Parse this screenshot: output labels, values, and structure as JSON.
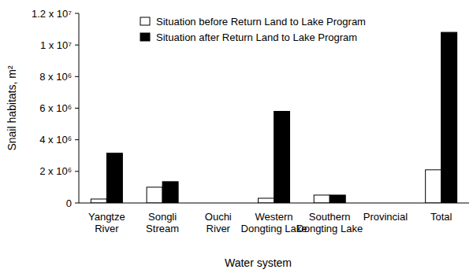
{
  "chart_data": {
    "type": "bar",
    "x_label": "Water system",
    "y_label": "Snail habitats, m²",
    "categories": [
      "Yangtze River",
      "Songli Stream",
      "Ouchi River",
      "Western Dongting Lake",
      "Southern Dongting Lake",
      "Provincial",
      "Total"
    ],
    "series": [
      {
        "name": "Situation before Return Land to Lake Program",
        "color": "#ffffff",
        "values": [
          250000,
          1000000,
          0,
          300000,
          500000,
          0,
          2100000
        ]
      },
      {
        "name": "Situation after Return Land to Lake Program",
        "color": "#000000",
        "values": [
          3150000,
          1350000,
          0,
          5800000,
          500000,
          0,
          10800000
        ]
      }
    ],
    "ylim": [
      0,
      12000000
    ],
    "yticks": [
      0,
      {
        "value": 2000000,
        "label": "2 x 10⁶"
      },
      {
        "value": 4000000,
        "label": "4 x 10⁶"
      },
      {
        "value": 6000000,
        "label": "6 x 10⁶"
      },
      {
        "value": 8000000,
        "label": "8 x 10⁶"
      },
      {
        "value": 10000000,
        "label": "1 x 10⁷"
      },
      {
        "value": 12000000,
        "label": "1.2 x 10⁷"
      }
    ],
    "grid": false,
    "legend": "upper left"
  }
}
